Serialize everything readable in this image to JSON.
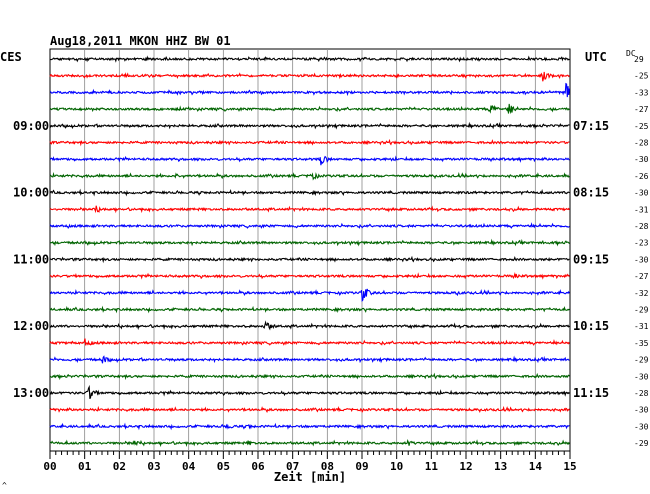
{
  "chart_data": {
    "type": "line",
    "title": "Aug18,2011  MKON HHZ BW 01",
    "left_timezone": "CES",
    "right_timezone": "UTC",
    "dc_label": "DC",
    "xlabel": "Zeit [min]",
    "x_ticks": [
      "00",
      "01",
      "02",
      "03",
      "04",
      "05",
      "06",
      "07",
      "08",
      "09",
      "10",
      "11",
      "12",
      "13",
      "14",
      "15"
    ],
    "xlim": [
      0,
      15
    ],
    "grid": true,
    "trace_colors": [
      "#000000",
      "#ff0000",
      "#0000ff",
      "#006400"
    ],
    "left_time_labels": [
      {
        "row": 4,
        "label": "09:00"
      },
      {
        "row": 8,
        "label": "10:00"
      },
      {
        "row": 12,
        "label": "11:00"
      },
      {
        "row": 16,
        "label": "12:00"
      },
      {
        "row": 20,
        "label": "13:00"
      }
    ],
    "right_time_labels": [
      {
        "row": 4,
        "label": "07:15"
      },
      {
        "row": 8,
        "label": "08:15"
      },
      {
        "row": 12,
        "label": "09:15"
      },
      {
        "row": 16,
        "label": "10:15"
      },
      {
        "row": 20,
        "label": "11:15"
      }
    ],
    "dc_offsets": [
      "29",
      "-25",
      "-33",
      "-27",
      "-25",
      "-28",
      "-30",
      "-26",
      "-30",
      "-31",
      "-28",
      "-23",
      "-30",
      "-27",
      "-32",
      "-29",
      "-31",
      "-35",
      "-29",
      "-30",
      "-28",
      "-30",
      "-30",
      "-29"
    ],
    "events": [
      {
        "row": 1,
        "minute": 14.2,
        "amplitude": 7
      },
      {
        "row": 2,
        "minute": 14.85,
        "amplitude": 12
      },
      {
        "row": 3,
        "minute": 12.7,
        "amplitude": 6
      },
      {
        "row": 3,
        "minute": 13.2,
        "amplitude": 7
      },
      {
        "row": 6,
        "minute": 7.8,
        "amplitude": 7
      },
      {
        "row": 7,
        "minute": 7.5,
        "amplitude": 6
      },
      {
        "row": 7,
        "minute": 3.6,
        "amplitude": 3
      },
      {
        "row": 9,
        "minute": 1.3,
        "amplitude": 5
      },
      {
        "row": 13,
        "minute": 13.4,
        "amplitude": 3
      },
      {
        "row": 14,
        "minute": 9.0,
        "amplitude": 9
      },
      {
        "row": 14,
        "minute": 11.7,
        "amplitude": 3
      },
      {
        "row": 16,
        "minute": 6.2,
        "amplitude": 7
      },
      {
        "row": 17,
        "minute": 1.0,
        "amplitude": 5
      },
      {
        "row": 18,
        "minute": 1.5,
        "amplitude": 5
      },
      {
        "row": 20,
        "minute": 1.1,
        "amplitude": 8
      },
      {
        "row": 22,
        "minute": 5.1,
        "amplitude": 4
      },
      {
        "row": 22,
        "minute": 5.7,
        "amplitude": 3
      },
      {
        "row": 23,
        "minute": 2.4,
        "amplitude": 4
      },
      {
        "row": 23,
        "minute": 5.7,
        "amplitude": 3
      },
      {
        "row": 23,
        "minute": 10.3,
        "amplitude": 4
      }
    ]
  },
  "corner_mark": "^"
}
